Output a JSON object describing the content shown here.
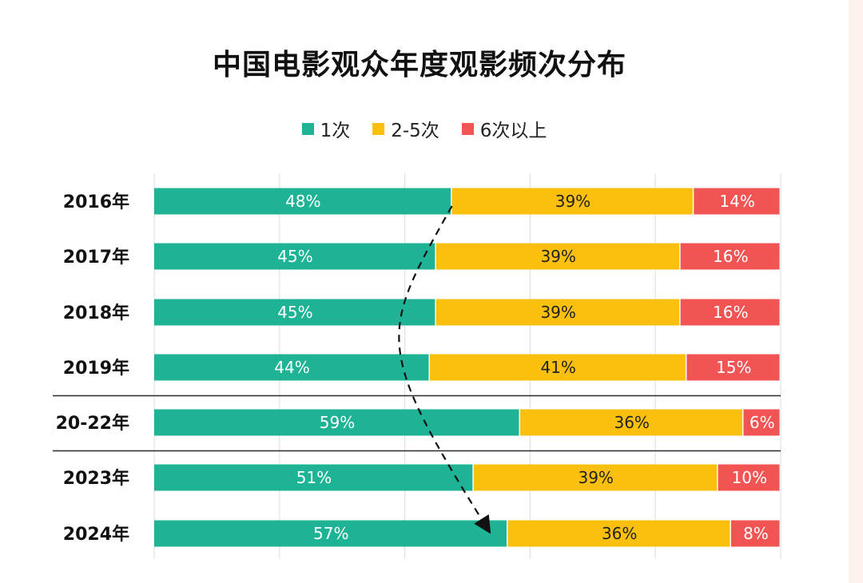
{
  "chart_data": {
    "type": "bar",
    "orientation": "horizontal",
    "stacked": true,
    "title": "中国电影观众年度观影频次分布",
    "categories": [
      "2016年",
      "2017年",
      "2018年",
      "2019年",
      "20-22年",
      "2023年",
      "2024年"
    ],
    "value_labels": [
      [
        "48%",
        "45%",
        "45%",
        "44%",
        "59%",
        "51%",
        "57%"
      ],
      [
        "39%",
        "39%",
        "39%",
        "41%",
        "36%",
        "39%",
        "36%"
      ],
      [
        "14%",
        "16%",
        "16%",
        "15%",
        "6%",
        "10%",
        "8%"
      ]
    ],
    "series": [
      {
        "name": "1次",
        "color": "#1db394",
        "label_color": "#ffffff",
        "values": [
          48,
          45,
          45,
          44,
          59,
          51,
          57
        ]
      },
      {
        "name": "2-5次",
        "color": "#fbbf0e",
        "label_color": "#222222",
        "values": [
          39,
          39,
          39,
          41,
          36,
          39,
          36
        ]
      },
      {
        "name": "6次以上",
        "color": "#f25454",
        "label_color": "#ffffff",
        "values": [
          14,
          16,
          16,
          15,
          6,
          10,
          8
        ]
      }
    ],
    "xlim": [
      0,
      100
    ],
    "grid": true,
    "legend_position": "top-center",
    "separators_after": [
      "2019年",
      "20-22年"
    ],
    "annotation": "dashed curved arrow from the end of the 2016 '1次' segment down to the end of the 2024 '1次' segment"
  }
}
